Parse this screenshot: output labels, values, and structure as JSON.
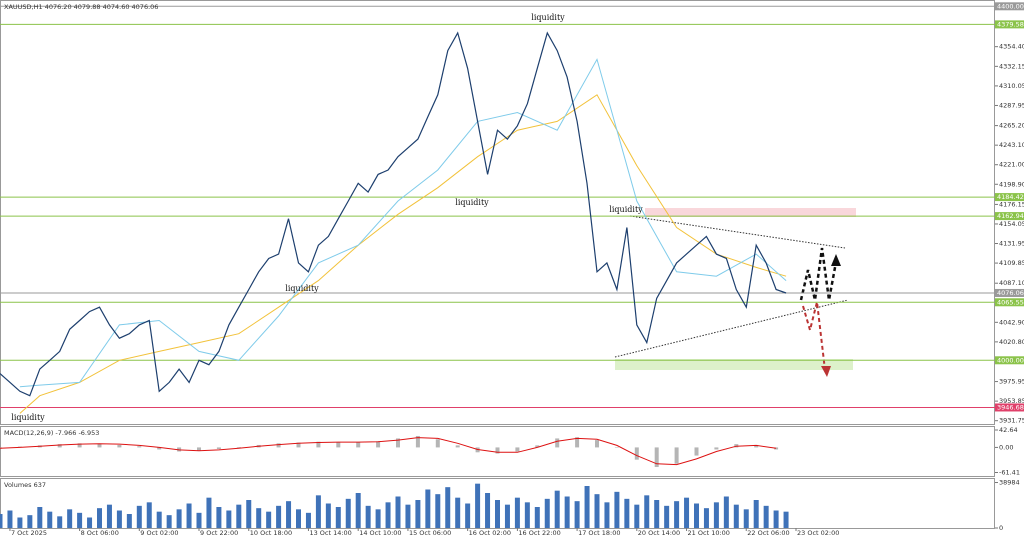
{
  "chart_data": [
    {
      "type": "line",
      "title": "XAUUSD,H1  4076.20 4079.88 4074.60 4076.06",
      "xlim": [
        0,
        100
      ],
      "ylim": [
        3928,
        4406
      ],
      "yticks": [
        {
          "value": 4354.4,
          "label": "4354.40"
        },
        {
          "value": 4332.15,
          "label": "4332.15"
        },
        {
          "value": 4310.05,
          "label": "4310.05"
        },
        {
          "value": 4287.95,
          "label": "4287.95"
        },
        {
          "value": 4265.2,
          "label": "4265.20"
        },
        {
          "value": 4243.1,
          "label": "4243.10"
        },
        {
          "value": 4221,
          "label": "4221.00"
        },
        {
          "value": 4198.9,
          "label": "4198.90"
        },
        {
          "value": 4176.15,
          "label": "4176.15"
        },
        {
          "value": 4154.05,
          "label": "4154.05"
        },
        {
          "value": 4131.95,
          "label": "4131.95"
        },
        {
          "value": 4109.85,
          "label": "4109.85"
        },
        {
          "value": 4087.1,
          "label": "4087.10"
        },
        {
          "value": 4042.9,
          "label": "4042.90"
        },
        {
          "value": 4020.8,
          "label": "4020.80"
        },
        {
          "value": 3975.95,
          "label": "3975.95"
        },
        {
          "value": 3953.85,
          "label": "3953.85"
        },
        {
          "value": 3931.75,
          "label": "3931.75"
        }
      ],
      "levels": [
        {
          "value": 4400,
          "label": "4400.00",
          "color": "#9a9a9a"
        },
        {
          "value": 4379.58,
          "label": "4379.58",
          "color": "#8bc34a"
        },
        {
          "value": 4184.42,
          "label": "4184.42",
          "color": "#8bc34a"
        },
        {
          "value": 4162.94,
          "label": "4162.94",
          "color": "#8bc34a"
        },
        {
          "value": 4076.06,
          "label": "4076.06",
          "color": "#9a9a9a"
        },
        {
          "value": 4065.55,
          "label": "4065.55",
          "color": "#8bc34a"
        },
        {
          "value": 4000,
          "label": "4000.00",
          "color": "#8bc34a"
        },
        {
          "value": 3946.68,
          "label": "3946.68",
          "color": "#e0406a"
        }
      ],
      "annotations": [
        "liquidity",
        "liquidity",
        "liquidity",
        "liquidity",
        "liquidity"
      ],
      "xticks": [
        {
          "value": 1,
          "label": "7 Oct 2025"
        },
        {
          "value": 8,
          "label": "8 Oct 06:00"
        },
        {
          "value": 14,
          "label": "9 Oct 02:00"
        },
        {
          "value": 20,
          "label": "9 Oct 22:00"
        },
        {
          "value": 25,
          "label": "10 Oct 18:00"
        },
        {
          "value": 31,
          "label": "13 Oct 14:00"
        },
        {
          "value": 36,
          "label": "14 Oct 10:00"
        },
        {
          "value": 41,
          "label": "15 Oct 06:00"
        },
        {
          "value": 47,
          "label": "16 Oct 02:00"
        },
        {
          "value": 52,
          "label": "16 Oct 22:00"
        },
        {
          "value": 58,
          "label": "17 Oct 18:00"
        },
        {
          "value": 64,
          "label": "20 Oct 14:00"
        },
        {
          "value": 69,
          "label": "21 Oct 10:00"
        },
        {
          "value": 75,
          "label": "22 Oct 06:00"
        },
        {
          "value": 80,
          "label": "23 Oct 02:00"
        }
      ],
      "series": [
        {
          "type": "line",
          "color": "#f2c23a",
          "x": [
            2,
            4,
            8,
            12,
            16,
            20,
            24,
            28,
            32,
            36,
            40,
            44,
            48,
            52,
            56,
            60,
            64,
            68,
            72,
            76,
            79
          ],
          "values": [
            3940,
            3960,
            3975,
            4000,
            4010,
            4020,
            4030,
            4060,
            4090,
            4130,
            4165,
            4195,
            4230,
            4260,
            4270,
            4300,
            4220,
            4150,
            4120,
            4105,
            4095
          ]
        },
        {
          "type": "line",
          "color": "#7fcbea",
          "x": [
            2,
            4,
            8,
            12,
            16,
            20,
            24,
            28,
            32,
            36,
            40,
            44,
            48,
            52,
            56,
            60,
            64,
            68,
            72,
            76,
            79
          ],
          "values": [
            3970,
            3972,
            3975,
            4040,
            4045,
            4010,
            4000,
            4050,
            4110,
            4130,
            4180,
            4215,
            4270,
            4280,
            4260,
            4340,
            4180,
            4100,
            4095,
            4120,
            4090
          ]
        },
        {
          "type": "line",
          "color": "#1d3f6e",
          "values": [
            3985,
            3975,
            3965,
            3960,
            3990,
            4000,
            4010,
            4035,
            4045,
            4055,
            4060,
            4040,
            4025,
            4030,
            4040,
            4045,
            3965,
            3975,
            3990,
            3975,
            4000,
            3995,
            4010,
            4040,
            4060,
            4080,
            4100,
            4115,
            4120,
            4160,
            4110,
            4100,
            4130,
            4140,
            4160,
            4180,
            4200,
            4190,
            4210,
            4215,
            4230,
            4240,
            4250,
            4275,
            4300,
            4350,
            4370,
            4330,
            4270,
            4210,
            4260,
            4250,
            4265,
            4290,
            4330,
            4370,
            4350,
            4320,
            4270,
            4200,
            4100,
            4110,
            4080,
            4150,
            4040,
            4020,
            4070,
            4090,
            4110,
            4120,
            4130,
            4140,
            4120,
            4115,
            4080,
            4060,
            4130,
            4110,
            4080,
            4076.06
          ]
        }
      ]
    },
    {
      "type": "bar",
      "title": "MACD(12,26,9) -7.966 -6.953",
      "xlim": [
        0,
        100
      ],
      "ylim": [
        -70,
        50
      ],
      "yticks": [
        {
          "value": 42.64,
          "label": "42.64"
        },
        {
          "value": 0,
          "label": "0.00"
        },
        {
          "value": -61.41,
          "label": "-61.41"
        }
      ],
      "series": [
        {
          "type": "bar",
          "color": "#b5b5b5",
          "x": [
            0,
            2,
            4,
            6,
            8,
            10,
            12,
            14,
            16,
            18,
            20,
            22,
            24,
            26,
            28,
            30,
            32,
            34,
            36,
            38,
            40,
            42,
            44,
            46,
            48,
            50,
            52,
            54,
            56,
            58,
            60,
            62,
            64,
            66,
            68,
            70,
            72,
            74,
            76,
            78
          ],
          "values": [
            -3,
            2,
            5,
            8,
            10,
            9,
            6,
            3,
            -5,
            -10,
            -8,
            -4,
            1,
            6,
            10,
            12,
            14,
            13,
            12,
            15,
            22,
            28,
            20,
            5,
            -12,
            -15,
            -10,
            5,
            22,
            25,
            18,
            0,
            -30,
            -48,
            -40,
            -20,
            -5,
            8,
            6,
            -5
          ]
        },
        {
          "type": "line",
          "color": "#dd1111",
          "x": [
            0,
            2,
            4,
            6,
            8,
            10,
            12,
            14,
            16,
            18,
            20,
            22,
            24,
            26,
            28,
            30,
            32,
            34,
            36,
            38,
            40,
            42,
            44,
            46,
            48,
            50,
            52,
            54,
            56,
            58,
            60,
            62,
            64,
            66,
            68,
            70,
            72,
            74,
            76,
            78
          ],
          "values": [
            -2,
            0,
            3,
            6,
            8,
            9,
            8,
            5,
            0,
            -6,
            -8,
            -6,
            -2,
            3,
            7,
            10,
            12,
            13,
            13,
            14,
            18,
            24,
            22,
            10,
            -5,
            -12,
            -12,
            0,
            15,
            22,
            20,
            5,
            -20,
            -40,
            -42,
            -28,
            -10,
            3,
            5,
            -2
          ]
        }
      ]
    },
    {
      "type": "bar",
      "title": "Volumes 637",
      "xlim": [
        0,
        100
      ],
      "ylim": [
        0,
        42000
      ],
      "yticks": [
        38984,
        0
      ],
      "series": [
        {
          "type": "bar",
          "color": "#3f72b8",
          "values": [
            12000,
            15000,
            9000,
            11000,
            18000,
            14000,
            10000,
            16000,
            13000,
            9000,
            17000,
            20000,
            15000,
            12000,
            19000,
            22000,
            14000,
            11000,
            16000,
            21000,
            13000,
            26000,
            18000,
            15000,
            20000,
            24000,
            17000,
            14000,
            19000,
            23000,
            16000,
            13000,
            28000,
            21000,
            18000,
            25000,
            30000,
            19000,
            16000,
            22000,
            27000,
            20000,
            24000,
            33000,
            29000,
            35000,
            26000,
            21000,
            38000,
            30000,
            24000,
            20000,
            26000,
            22000,
            18000,
            25000,
            32000,
            27000,
            23000,
            36000,
            29000,
            22000,
            31000,
            25000,
            20000,
            28000,
            24000,
            19000,
            23000,
            26000,
            21000,
            17000,
            22000,
            27000,
            20000,
            16000,
            24000,
            19000,
            15000,
            14000
          ]
        }
      ]
    }
  ]
}
